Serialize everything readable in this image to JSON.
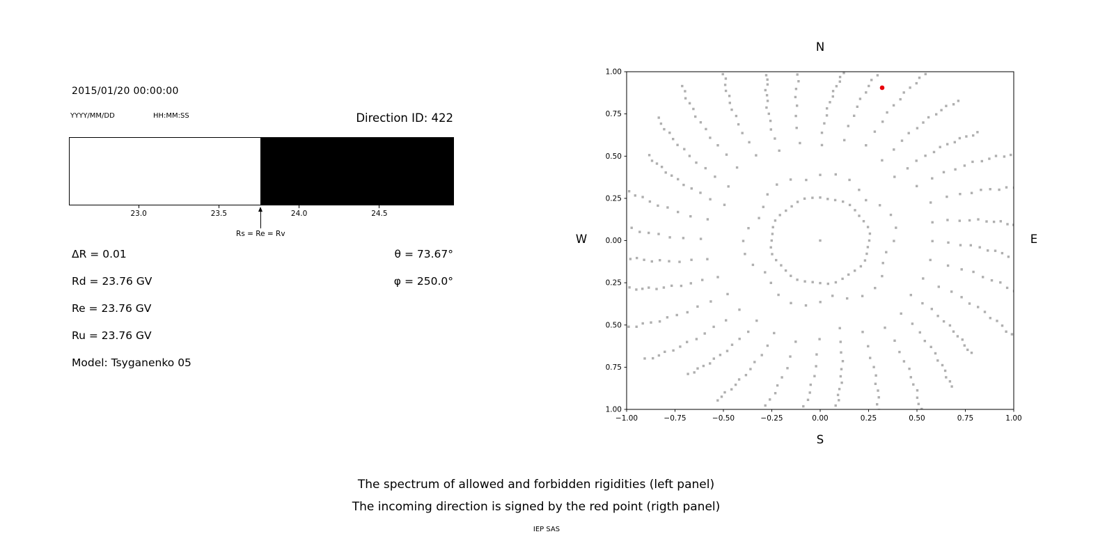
{
  "colors": {
    "background": "#ffffff",
    "text": "#000000"
  },
  "header": {
    "timestamp": "2015/01/20 00:00:00",
    "date_format_label": "YYYY/MM/DD",
    "time_format_label": "HH:MM:SS"
  },
  "info": {
    "left": [
      "ΔR = 0.01",
      "Rd = 23.76 GV",
      "Re = 23.76 GV",
      "Ru = 23.76 GV",
      "Model: Tsyganenko 05"
    ],
    "right": [
      "θ = 73.67°",
      "φ = 250.0°"
    ]
  },
  "caption": {
    "line1": "The spectrum of allowed and forbidden rigidities (left panel)",
    "line2": "The incoming direction is signed by the red point (rigth panel)",
    "credit": "IEP SAS"
  },
  "chart_data": [
    {
      "type": "bar",
      "subtype": "rigidity-spectrum",
      "title": "Direction ID: 422",
      "x_range": [
        22.565,
        24.965
      ],
      "boundary": 23.76,
      "boundary_label": "Rs = Re = Rv",
      "ticks": [
        23.0,
        23.5,
        24.0,
        24.5
      ],
      "allowed_color": "#ffffff",
      "forbidden_color": "#000000"
    },
    {
      "type": "scatter",
      "xlim": [
        -1,
        1
      ],
      "ylim": [
        -1,
        1
      ],
      "x_ticks": [
        -1,
        -0.75,
        -0.5,
        -0.25,
        0,
        0.25,
        0.5,
        0.75,
        1
      ],
      "y_ticks": [
        1,
        0.75,
        0.5,
        0.25,
        0,
        -0.25,
        -0.5,
        -0.75,
        -1
      ],
      "compass": {
        "north": "N",
        "south": "S",
        "west": "W",
        "east": "E"
      },
      "dot_color": "#9b9b9b",
      "red_point": {
        "x": 0.32,
        "y": 0.905,
        "color": "#e8000b"
      },
      "center_dot": true,
      "ring": {
        "radius": 0.255,
        "count": 40
      },
      "generator": {
        "spoke_count": 32,
        "angle_step_deg": 11.25,
        "angle_offset_deg": 0,
        "r_start": 0.33,
        "r_start_jitter": 0.07,
        "r_end": 1.0,
        "r_end_jitter": 0.16,
        "points_per_spoke": 13,
        "density_exp": 0.5,
        "curve_deg": 7
      }
    }
  ]
}
